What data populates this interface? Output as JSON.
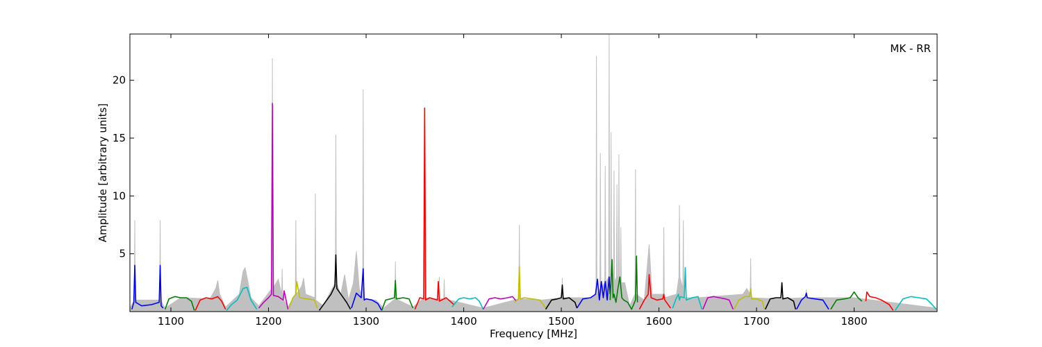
{
  "chart_data": {
    "type": "line",
    "annotation": "MK - RR",
    "xlabel": "Frequency [MHz]",
    "ylabel": "Amplitude [arbitrary units]",
    "xlim": [
      1058,
      1885
    ],
    "ylim": [
      0,
      24
    ],
    "xticks": [
      1100,
      1200,
      1300,
      1400,
      1500,
      1600,
      1700,
      1800
    ],
    "yticks": [
      5,
      10,
      15,
      20
    ],
    "series": [
      {
        "color": "#c0c0c0",
        "fill": true,
        "x": [
          1058,
          1062.5,
          1063,
          1063.5,
          1070,
          1080,
          1088.5,
          1089,
          1089.5,
          1094,
          1110,
          1140,
          1146,
          1148,
          1150,
          1156,
          1170,
          1174,
          1176,
          1178,
          1182,
          1190,
          1203.5,
          1204,
          1204.5,
          1210,
          1213.5,
          1214,
          1214.5,
          1220,
          1227.5,
          1228,
          1228.5,
          1234,
          1236,
          1238,
          1247.5,
          1248,
          1248.5,
          1256,
          1264,
          1268.5,
          1269,
          1269.5,
          1274,
          1278,
          1282,
          1287,
          1290,
          1293,
          1296.5,
          1297,
          1297.5,
          1310,
          1318,
          1329.5,
          1330,
          1330.5,
          1348,
          1359.5,
          1360,
          1360.5,
          1370,
          1374.5,
          1375,
          1375.5,
          1379.5,
          1380,
          1380.5,
          1420,
          1456.5,
          1457,
          1457.5,
          1480,
          1500.5,
          1501,
          1501.5,
          1530,
          1535.5,
          1536,
          1536.5,
          1539.5,
          1540,
          1540.5,
          1544.5,
          1545,
          1545.5,
          1548.5,
          1549,
          1549.5,
          1550.5,
          1551,
          1551.5,
          1553.5,
          1554,
          1554.5,
          1556.5,
          1557,
          1557.5,
          1558.5,
          1559,
          1559.5,
          1560.5,
          1561,
          1561.5,
          1565,
          1570,
          1575.5,
          1576,
          1576.5,
          1585,
          1590,
          1593,
          1604.5,
          1605,
          1605.5,
          1618,
          1620.5,
          1621,
          1621.5,
          1624.5,
          1625,
          1625.5,
          1640,
          1686,
          1690,
          1693.5,
          1694,
          1694.5,
          1720,
          1750.5,
          1751,
          1751.5,
          1800,
          1885
        ],
        "values": [
          0.3,
          1.0,
          7.9,
          1.0,
          1.0,
          1.0,
          1.0,
          7.9,
          1.0,
          0.3,
          1.2,
          1.1,
          2.0,
          2.7,
          1.5,
          0.4,
          1.5,
          3.5,
          3.8,
          3.0,
          1.2,
          0.5,
          2.0,
          21.9,
          2.0,
          2.8,
          1.5,
          3.7,
          1.2,
          0.4,
          1.5,
          7.9,
          1.5,
          2.2,
          2.9,
          1.5,
          1.2,
          10.2,
          1.0,
          0.5,
          1.8,
          2.5,
          15.3,
          2.5,
          1.5,
          3.2,
          1.0,
          2.5,
          5.2,
          2.0,
          1.2,
          19.2,
          1.1,
          1.0,
          0.3,
          1.1,
          4.3,
          1.1,
          0.4,
          1.2,
          17.6,
          1.2,
          1.1,
          1.1,
          3.0,
          1.1,
          1.1,
          2.8,
          1.1,
          0.3,
          1.1,
          7.5,
          1.1,
          1.0,
          1.2,
          2.9,
          1.2,
          1.2,
          1.5,
          22.1,
          1.5,
          2.0,
          13.7,
          2.0,
          2.5,
          12.6,
          2.5,
          3.0,
          24,
          3.0,
          3.0,
          15.5,
          3.0,
          2.5,
          12.2,
          2.5,
          3.0,
          11.0,
          3.0,
          3.0,
          13.6,
          3.0,
          2.5,
          7.3,
          2.5,
          2.5,
          0.5,
          1.5,
          12.3,
          1.5,
          1.0,
          5.8,
          1.5,
          1.5,
          7.3,
          1.2,
          1.5,
          3.0,
          9.2,
          3.0,
          2.0,
          7.9,
          1.2,
          1.2,
          1.5,
          2.0,
          1.5,
          4.6,
          1.2,
          1.1,
          1.2,
          1.9,
          1.2,
          1.2,
          0.3
        ]
      },
      {
        "color": "#0000ff",
        "x": [
          1060,
          1062,
          1063,
          1064,
          1070,
          1080,
          1088,
          1089,
          1090,
          1092
        ],
        "values": [
          0.2,
          0.8,
          4.0,
          0.8,
          0.5,
          0.6,
          0.8,
          4.0,
          0.5,
          0.3
        ]
      },
      {
        "color": "#008000",
        "x": [
          1094,
          1098,
          1104,
          1110,
          1116,
          1121,
          1124
        ],
        "values": [
          0.2,
          1.1,
          1.3,
          1.2,
          1.2,
          0.9,
          0.1
        ]
      },
      {
        "color": "#ff0000",
        "x": [
          1125,
          1130,
          1136,
          1142,
          1148,
          1152,
          1156
        ],
        "values": [
          0.1,
          1.0,
          1.2,
          1.1,
          1.3,
          0.9,
          0.2
        ]
      },
      {
        "color": "#00bfbf",
        "x": [
          1157,
          1162,
          1168,
          1174,
          1178,
          1182,
          1188
        ],
        "values": [
          0.1,
          0.6,
          1.0,
          2.0,
          2.1,
          1.0,
          0.2
        ]
      },
      {
        "color": "#bf00bf",
        "x": [
          1190,
          1195,
          1200,
          1203,
          1204,
          1205,
          1210,
          1215,
          1216,
          1220
        ],
        "values": [
          0.3,
          0.8,
          1.2,
          1.5,
          18,
          1.4,
          1.3,
          1.0,
          1.8,
          0.2
        ]
      },
      {
        "color": "#bfbf00",
        "x": [
          1221,
          1225,
          1228,
          1229,
          1232,
          1240,
          1247,
          1250
        ],
        "values": [
          0.3,
          1.2,
          1.5,
          2.6,
          1.2,
          1.1,
          1.0,
          0.3
        ]
      },
      {
        "color": "#000000",
        "x": [
          1252,
          1258,
          1264,
          1268,
          1269,
          1270,
          1275,
          1280,
          1284
        ],
        "values": [
          0.1,
          0.8,
          1.5,
          2.2,
          4.9,
          2.0,
          1.4,
          0.8,
          0.2
        ]
      },
      {
        "color": "#0000ff",
        "x": [
          1285,
          1290,
          1295,
          1297,
          1298,
          1300,
          1306,
          1312,
          1316
        ],
        "values": [
          0.3,
          1.6,
          1.2,
          3.7,
          1.0,
          1.1,
          1.0,
          0.7,
          0.1
        ]
      },
      {
        "color": "#008000",
        "x": [
          1316,
          1320,
          1325,
          1329,
          1330,
          1331,
          1338,
          1344,
          1348
        ],
        "values": [
          0.1,
          1.0,
          1.1,
          1.2,
          2.7,
          1.1,
          1.2,
          1.1,
          0.3
        ]
      },
      {
        "color": "#ff0000",
        "x": [
          1350,
          1355,
          1359,
          1360,
          1361,
          1365,
          1373,
          1374,
          1375,
          1382,
          1390
        ],
        "values": [
          0.2,
          1.2,
          1.1,
          17.6,
          1.0,
          1.2,
          1.0,
          2.6,
          0.9,
          1.2,
          0.6
        ]
      },
      {
        "color": "#00bfbf",
        "x": [
          1388,
          1395,
          1400,
          1406,
          1412,
          1416,
          1420
        ],
        "values": [
          0.4,
          1.1,
          1.2,
          1.1,
          1.2,
          0.9,
          0.2
        ]
      },
      {
        "color": "#bf00bf",
        "x": [
          1420,
          1426,
          1432,
          1438,
          1445,
          1450,
          1454
        ],
        "values": [
          0.2,
          1.1,
          1.2,
          1.1,
          1.2,
          1.3,
          0.9
        ]
      },
      {
        "color": "#bfbf00",
        "x": [
          1452,
          1456,
          1457,
          1458,
          1462,
          1470,
          1478,
          1484
        ],
        "values": [
          0.8,
          1.1,
          3.9,
          1.1,
          1.2,
          1.1,
          1.0,
          0.3
        ]
      },
      {
        "color": "#000000",
        "x": [
          1484,
          1490,
          1496,
          1500,
          1501,
          1502,
          1508,
          1514,
          1516
        ],
        "values": [
          0.2,
          1.0,
          1.1,
          1.2,
          2.3,
          1.1,
          1.2,
          0.8,
          0.3
        ]
      },
      {
        "color": "#0000ff",
        "x": [
          1516,
          1522,
          1530,
          1535,
          1537,
          1539,
          1541,
          1543,
          1545,
          1547,
          1549,
          1550
        ],
        "values": [
          0.3,
          1.1,
          1.2,
          1.5,
          2.8,
          1.0,
          2.6,
          1.2,
          2.6,
          1.0,
          3.0,
          1.5
        ]
      },
      {
        "color": "#008000",
        "x": [
          1550,
          1552,
          1553,
          1554,
          1556,
          1558,
          1560,
          1562,
          1564,
          1568,
          1572,
          1576,
          1577,
          1578
        ],
        "values": [
          1.0,
          4.5,
          1.2,
          1.5,
          0.8,
          2.0,
          3.0,
          1.2,
          1.0,
          0.8,
          0.2,
          1.0,
          4.8,
          0.8
        ]
      },
      {
        "color": "#ff0000",
        "x": [
          1580,
          1585,
          1589,
          1590,
          1592,
          1598,
          1604,
          1605,
          1606,
          1612
        ],
        "values": [
          0.2,
          1.0,
          1.5,
          3.2,
          1.2,
          1.0,
          1.1,
          1.5,
          1.0,
          0.3
        ]
      },
      {
        "color": "#00bfbf",
        "x": [
          1614,
          1618,
          1620,
          1621,
          1622,
          1626,
          1627,
          1628,
          1634,
          1640,
          1644
        ],
        "values": [
          0.3,
          1.2,
          1.5,
          1.0,
          1.3,
          1.2,
          3.8,
          1.0,
          1.2,
          1.3,
          0.2
        ]
      },
      {
        "color": "#bf00bf",
        "x": [
          1645,
          1650,
          1656,
          1662,
          1668,
          1672,
          1676
        ],
        "values": [
          0.2,
          1.2,
          1.3,
          1.2,
          1.1,
          1.0,
          0.2
        ]
      },
      {
        "color": "#bfbf00",
        "x": [
          1677,
          1682,
          1688,
          1693,
          1694,
          1695,
          1700,
          1706,
          1708
        ],
        "values": [
          0.2,
          1.0,
          1.3,
          1.3,
          2.0,
          1.1,
          1.1,
          0.9,
          0.2
        ]
      },
      {
        "color": "#000000",
        "x": [
          1709,
          1714,
          1720,
          1725,
          1726,
          1727,
          1732,
          1738,
          1740
        ],
        "values": [
          0.2,
          1.1,
          1.2,
          1.2,
          2.5,
          1.1,
          1.2,
          0.9,
          0.2
        ]
      },
      {
        "color": "#0000ff",
        "x": [
          1741,
          1746,
          1750,
          1751,
          1752,
          1760,
          1768,
          1774
        ],
        "values": [
          0.2,
          1.0,
          1.3,
          1.6,
          1.2,
          1.1,
          1.0,
          0.2
        ]
      },
      {
        "color": "#008000",
        "x": [
          1776,
          1782,
          1790,
          1796,
          1800,
          1804,
          1808
        ],
        "values": [
          0.2,
          1.0,
          1.1,
          1.2,
          1.7,
          1.2,
          0.9
        ]
      },
      {
        "color": "#ff0000",
        "x": [
          1812,
          1813,
          1816,
          1822,
          1828,
          1836,
          1840
        ],
        "values": [
          0.9,
          1.7,
          1.3,
          1.2,
          1.0,
          0.6,
          0.1
        ]
      },
      {
        "color": "#00bfbf",
        "x": [
          1842,
          1850,
          1858,
          1866,
          1874,
          1880,
          1884
        ],
        "values": [
          0.1,
          1.1,
          1.3,
          1.2,
          1.1,
          0.6,
          0.2
        ]
      }
    ]
  }
}
